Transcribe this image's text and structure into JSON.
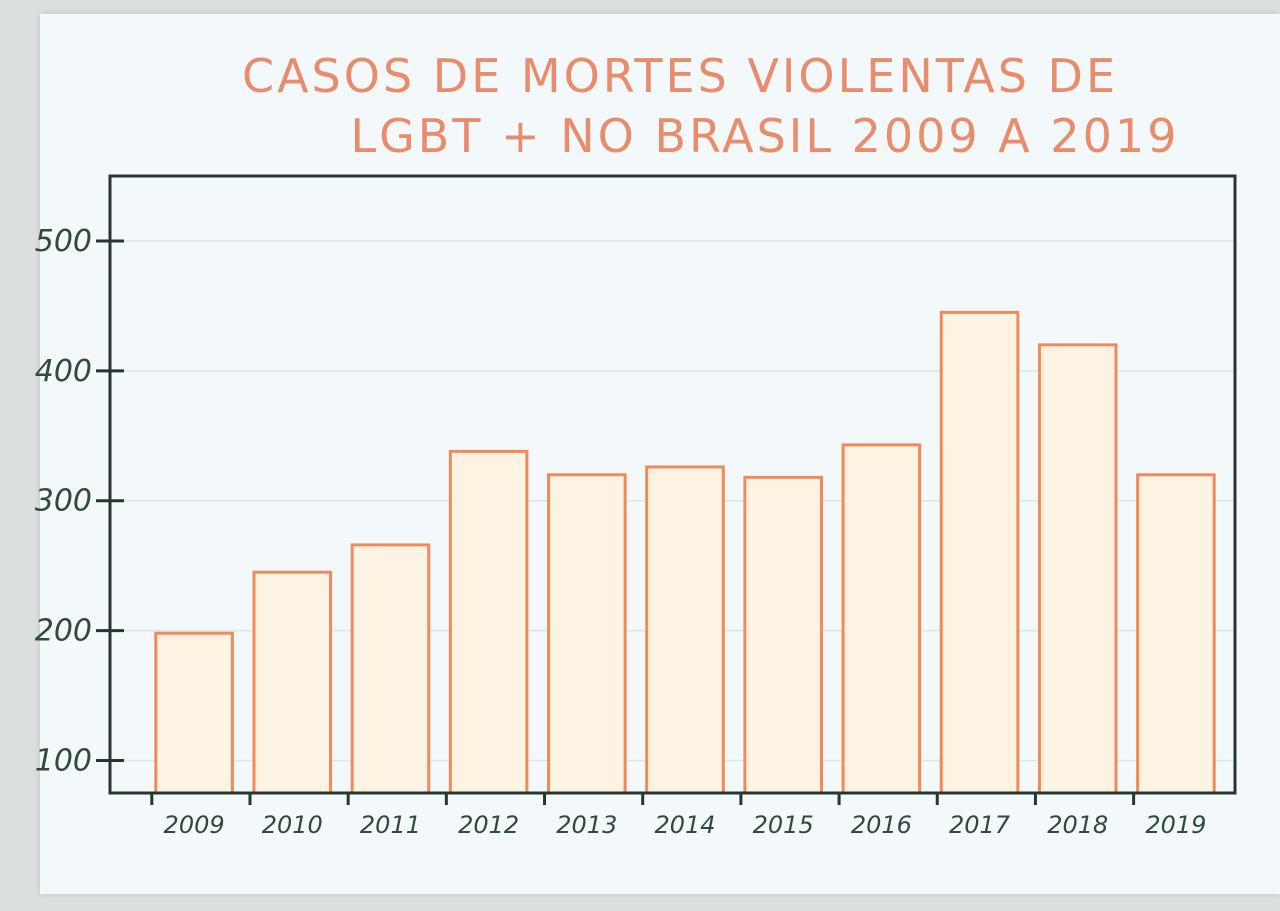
{
  "chart_data": {
    "type": "bar",
    "title_lines": [
      "CASOS DE MORTES VIOLENTAS DE",
      "LGBT + NO BRASIL 2009 A 2019"
    ],
    "categories": [
      "2009",
      "2010",
      "2011",
      "2012",
      "2013",
      "2014",
      "2015",
      "2016",
      "2017",
      "2018",
      "2019"
    ],
    "values": [
      198,
      245,
      266,
      338,
      320,
      326,
      318,
      343,
      445,
      420,
      320
    ],
    "y_ticks": [
      "100",
      "200",
      "300",
      "400",
      "500"
    ],
    "ylim": [
      75,
      550
    ],
    "grid": true,
    "bar_color": "#f08a5a",
    "bar_fill": "#fdf3e2",
    "axis_color": "#23382c"
  }
}
